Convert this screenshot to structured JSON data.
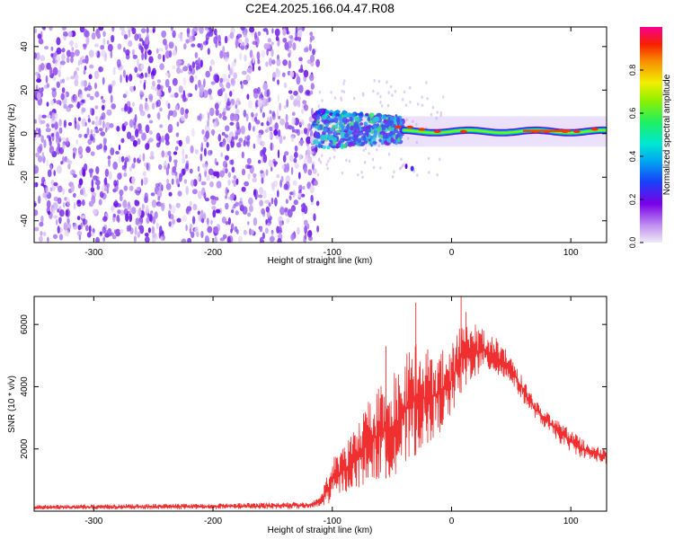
{
  "title": "C2E4.2025.166.04.47.R08",
  "spectrogram": {
    "xlabel": "Height of straight line (km)",
    "ylabel": "Frequency (Hz)",
    "xticks": [
      -300,
      -200,
      -100,
      0,
      100
    ],
    "yticks": [
      -40,
      -20,
      0,
      20,
      40
    ],
    "xlim": [
      -350,
      130
    ],
    "ylim": [
      -50,
      49
    ]
  },
  "colorbar": {
    "label": "Normalized spectral amplitude",
    "ticks": [
      0.0,
      0.2,
      0.4,
      0.6,
      0.8
    ],
    "tick_labels": [
      "0.0",
      "0.2",
      "0.4",
      "0.6",
      "0.8"
    ],
    "colors": [
      "#e6d8f5",
      "#a04cf0",
      "#6a00e8",
      "#1a3cf8",
      "#00a0f0",
      "#00e0d0",
      "#20f060",
      "#90f000",
      "#f0f000",
      "#f8a000",
      "#f83000",
      "#f80080"
    ]
  },
  "chart_data": [
    {
      "type": "heatmap",
      "title": "C2E4.2025.166.04.47.R08",
      "xlabel": "Height of straight line (km)",
      "ylabel": "Frequency (Hz)",
      "xlim": [
        -350,
        130
      ],
      "ylim": [
        -50,
        49
      ],
      "colorbar_label": "Normalized spectral amplitude",
      "colorbar_range": [
        0,
        1
      ],
      "regions": [
        {
          "x": [
            -350,
            -112
          ],
          "description_value": "broadband noise, amplitude 0.1-0.3"
        },
        {
          "x": [
            -115,
            -40
          ],
          "center_freq": 2,
          "amplitude": 0.4
        },
        {
          "x": [
            -40,
            130
          ],
          "center_freq": 1,
          "amplitude": 0.7
        }
      ]
    },
    {
      "type": "line",
      "xlabel": "Height of straight line (km)",
      "ylabel": "SNR (10 * v/v)",
      "xlim": [
        -350,
        130
      ],
      "ylim": [
        0,
        6900
      ],
      "xticks": [
        -300,
        -200,
        -100,
        0,
        100
      ],
      "yticks": [
        2000,
        4000,
        6000
      ],
      "color": "#f03030",
      "envelope": {
        "x": [
          -350,
          -200,
          -120,
          -110,
          -100,
          -90,
          -80,
          -70,
          -60,
          -50,
          -40,
          -30,
          -20,
          -10,
          0,
          10,
          20,
          30,
          40,
          50,
          60,
          70,
          80,
          90,
          100,
          110,
          120,
          130
        ],
        "low": [
          50,
          60,
          70,
          100,
          300,
          600,
          700,
          900,
          1000,
          1100,
          1300,
          1800,
          2200,
          2500,
          3000,
          4000,
          4300,
          4500,
          4300,
          4100,
          3500,
          3000,
          2600,
          2200,
          1900,
          1700,
          1600,
          1500
        ],
        "high": [
          200,
          250,
          300,
          500,
          1700,
          2100,
          2700,
          3500,
          4000,
          4300,
          5000,
          5500,
          5000,
          5200,
          5400,
          6200,
          6000,
          5800,
          5500,
          5000,
          4300,
          3600,
          3200,
          2900,
          2600,
          2300,
          2100,
          2000
        ]
      },
      "peaks": [
        {
          "x": -30,
          "y": 6700
        },
        {
          "x": -55,
          "y": 5300
        },
        {
          "x": 8,
          "y": 6900
        },
        {
          "x": 12,
          "y": 6400
        },
        {
          "x": -20,
          "y": 5200
        }
      ]
    }
  ],
  "snr": {
    "xlabel": "Height of straight line (km)",
    "ylabel": "SNR (10 * v/v)",
    "xticks": [
      -300,
      -200,
      -100,
      0,
      100
    ],
    "yticks": [
      2000,
      4000,
      6000
    ]
  }
}
